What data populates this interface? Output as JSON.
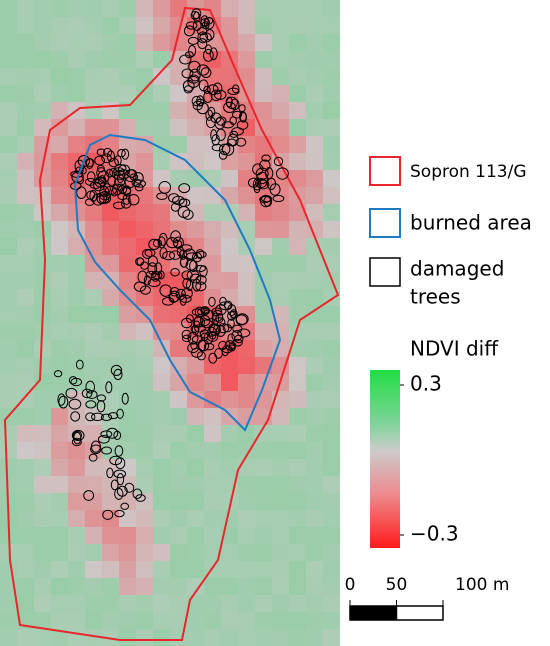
{
  "legend": {
    "items": [
      {
        "label": "Sopron 113/G",
        "color": "#e8262b"
      },
      {
        "label": "burned area",
        "color": "#1f7cc4"
      },
      {
        "label": "damaged trees",
        "label_lines": [
          "damaged",
          "trees"
        ],
        "color": "#000000"
      }
    ]
  },
  "colorbar": {
    "title": "NDVI diff",
    "lim": [
      -0.3,
      0.3
    ],
    "ticks": [
      0.3,
      {
        "value": -0.3,
        "label": "−0.3"
      }
    ]
  },
  "scale_bar": {
    "ticks": [
      0,
      50,
      {
        "value": 100,
        "label": "100 m"
      }
    ]
  }
}
